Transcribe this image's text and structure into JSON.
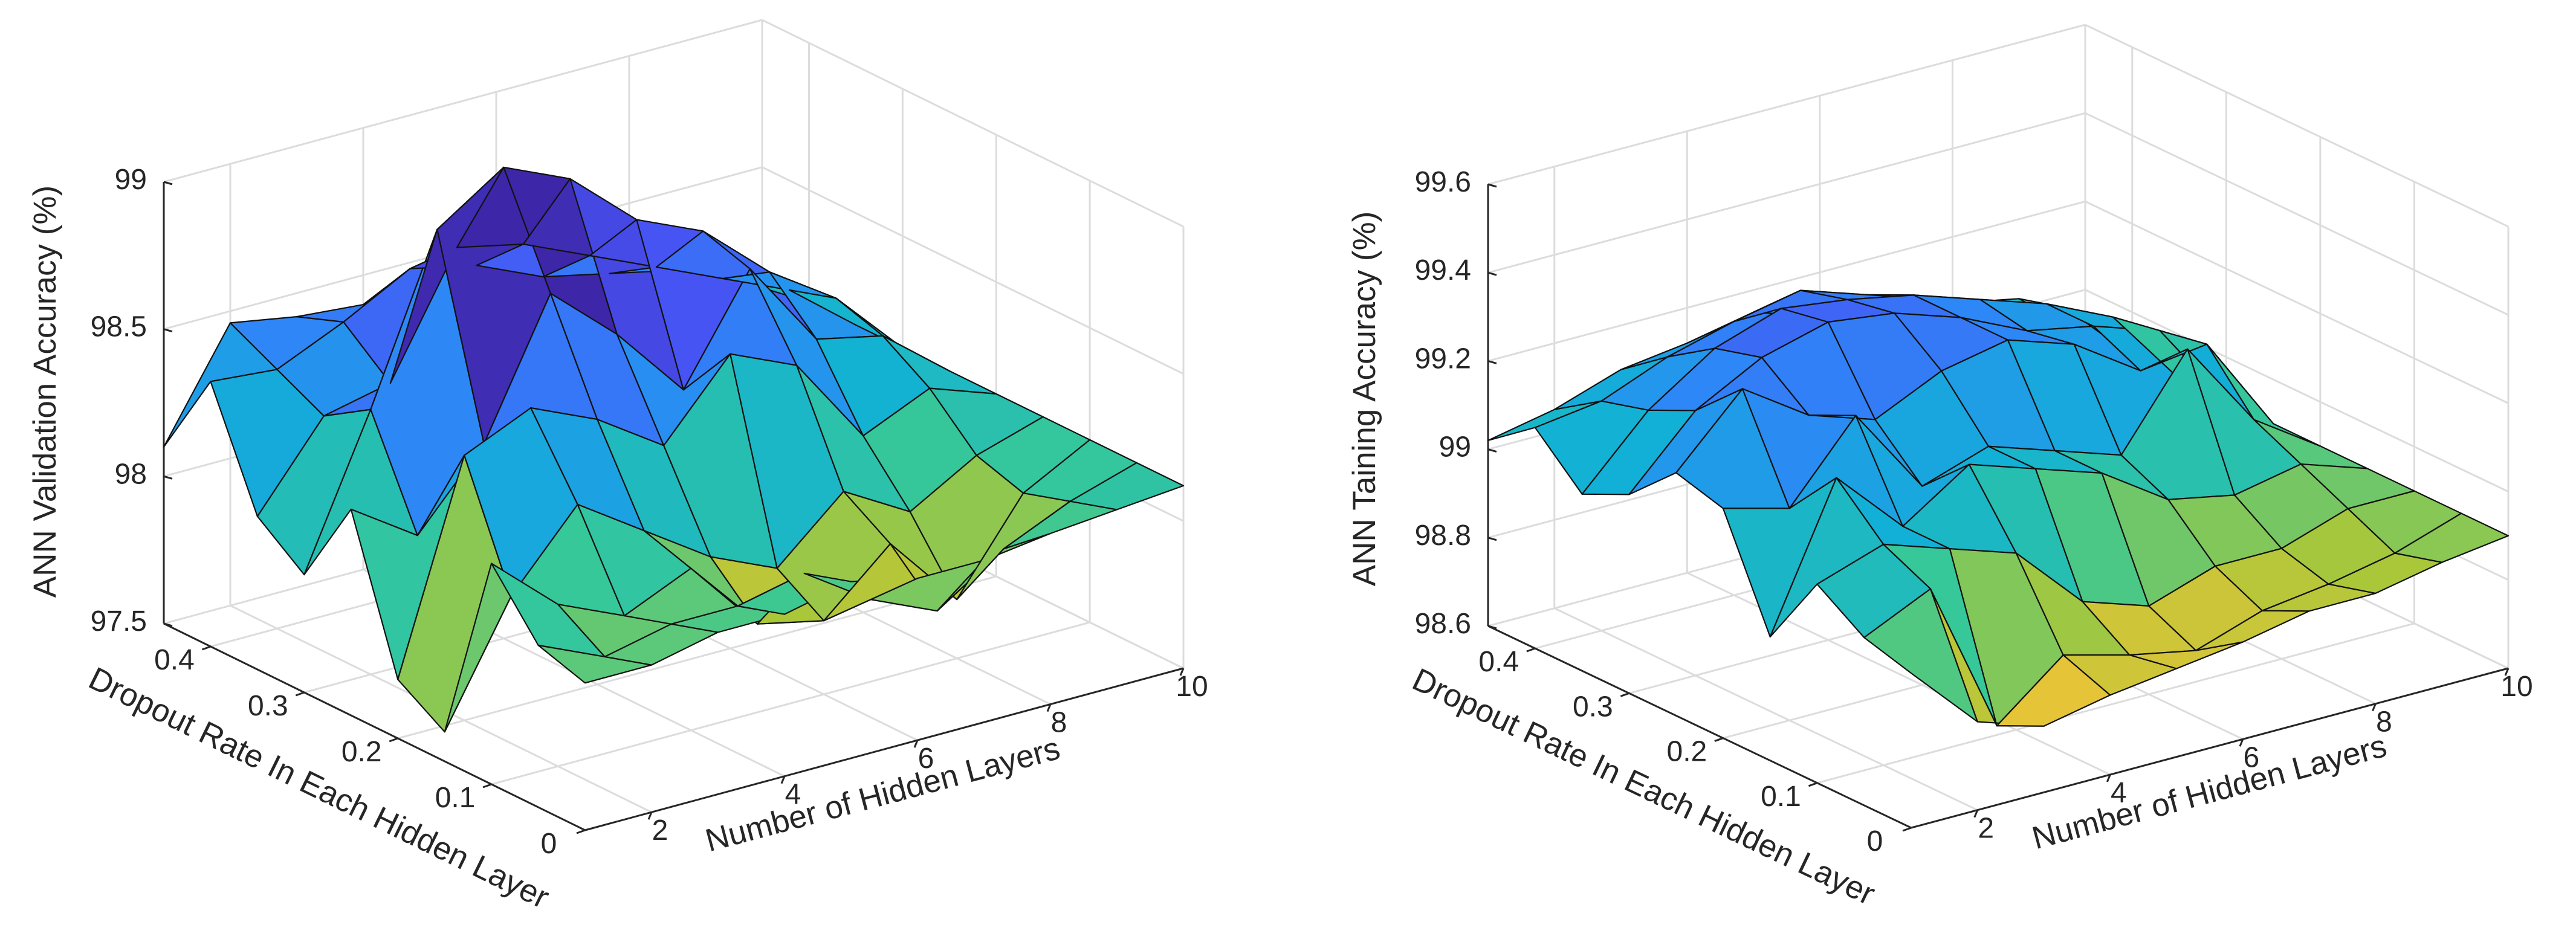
{
  "chart_data": [
    {
      "type": "surface",
      "title": "",
      "xlabel": "Number of Hidden Layers",
      "ylabel": "Dropout Rate In Each Hidden Layer",
      "zlabel": "ANN Validation Accuracy (%)",
      "x_ticks": [
        "2",
        "4",
        "6",
        "8",
        "10"
      ],
      "y_ticks": [
        "0",
        "0.1",
        "0.2",
        "0.3",
        "0.4"
      ],
      "z_ticks": [
        "97.5",
        "98",
        "98.5",
        "99"
      ],
      "xlim": [
        1,
        10
      ],
      "ylim": [
        0,
        0.45
      ],
      "zlim": [
        97.5,
        99
      ],
      "grid": true,
      "colormap": "parula",
      "x": [
        1,
        2,
        3,
        4,
        5,
        6,
        7,
        8,
        9,
        10
      ],
      "y": [
        0.45,
        0.4,
        0.35,
        0.3,
        0.25,
        0.2,
        0.15,
        0.1,
        0.05,
        0
      ],
      "z": [
        [
          98.1,
          98.46,
          98.42,
          98.4,
          98.35,
          98.28,
          98.22,
          98.18,
          98.15,
          98.12
        ],
        [
          98.4,
          98.38,
          98.48,
          98.6,
          98.55,
          98.45,
          98.4,
          98.35,
          98.25,
          98.12
        ],
        [
          98.02,
          98.3,
          98.35,
          98.75,
          98.7,
          98.6,
          98.5,
          98.4,
          98.3,
          98.12
        ],
        [
          97.9,
          98.4,
          98.95,
          99.1,
          99.0,
          98.8,
          98.7,
          98.5,
          98.35,
          98.12
        ],
        [
          98.2,
          98.05,
          98.3,
          98.75,
          98.55,
          98.3,
          98.65,
          98.35,
          98.3,
          98.12
        ],
        [
          97.7,
          98.4,
          98.5,
          98.4,
          98.25,
          98.5,
          98.4,
          98.1,
          98.2,
          98.12
        ],
        [
          97.6,
          98.0,
          98.25,
          98.1,
          97.95,
          97.85,
          98.05,
          97.92,
          98.05,
          98.12
        ],
        [
          98.25,
          98.05,
          97.95,
          98.05,
          97.8,
          97.75,
          97.95,
          97.7,
          98.0,
          98.12
        ],
        [
          98.05,
          97.95,
          98.0,
          98.0,
          98.05,
          97.9,
          97.8,
          97.95,
          98.05,
          98.12
        ],
        [
          98.0,
          98.0,
          98.05,
          98.05,
          98.1,
          98.05,
          98.05,
          98.08,
          98.1,
          98.12
        ]
      ]
    },
    {
      "type": "surface",
      "title": "",
      "xlabel": "Number of Hidden Layers",
      "ylabel": "Dropout Rate In Each Hidden Layer",
      "zlabel": "ANN Taining Accuracy (%)",
      "x_ticks": [
        "2",
        "4",
        "6",
        "8",
        "10"
      ],
      "y_ticks": [
        "0",
        "0.1",
        "0.2",
        "0.3",
        "0.4"
      ],
      "z_ticks": [
        "98.6",
        "98.8",
        "99",
        "99.2",
        "99.4",
        "99.6"
      ],
      "xlim": [
        1,
        10
      ],
      "ylim": [
        0,
        0.45
      ],
      "zlim": [
        98.6,
        99.6
      ],
      "grid": true,
      "colormap": "parula",
      "x": [
        1,
        2,
        3,
        4,
        5,
        6,
        7,
        8,
        9,
        10
      ],
      "y": [
        0.45,
        0.4,
        0.35,
        0.3,
        0.25,
        0.2,
        0.15,
        0.1,
        0.05,
        0
      ],
      "z": [
        [
          99.02,
          99.05,
          99.1,
          99.12,
          99.15,
          99.1,
          99.08,
          99.05,
          99.02,
          98.9
        ],
        [
          99.1,
          99.12,
          99.18,
          99.22,
          99.25,
          99.2,
          99.15,
          99.1,
          99.05,
          98.9
        ],
        [
          99.0,
          99.15,
          99.25,
          99.3,
          99.28,
          99.25,
          99.2,
          99.15,
          99.08,
          98.9
        ],
        [
          99.05,
          99.2,
          99.28,
          99.32,
          99.3,
          99.25,
          99.18,
          99.15,
          99.1,
          98.9
        ],
        [
          99.15,
          99.3,
          99.2,
          99.15,
          99.22,
          99.25,
          99.2,
          99.1,
          99.12,
          98.9
        ],
        [
          99.12,
          99.08,
          99.25,
          99.05,
          99.1,
          99.05,
          99.0,
          99.2,
          99.0,
          98.9
        ],
        [
          98.88,
          99.2,
          99.05,
          99.15,
          99.1,
          99.05,
          98.95,
          98.92,
          98.95,
          98.9
        ],
        [
          99.05,
          99.1,
          99.05,
          99.0,
          98.85,
          98.8,
          98.85,
          98.85,
          98.9,
          98.9
        ],
        [
          98.98,
          99.05,
          98.7,
          98.82,
          98.78,
          98.75,
          98.8,
          98.82,
          98.85,
          98.9
        ],
        [
          98.95,
          98.8,
          98.75,
          98.78,
          98.8,
          98.82,
          98.85,
          98.85,
          98.88,
          98.9
        ]
      ]
    }
  ]
}
